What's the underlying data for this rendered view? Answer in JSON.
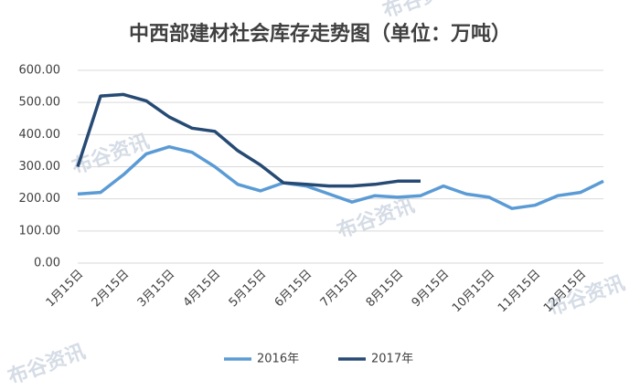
{
  "chart_data": {
    "type": "line",
    "title": "中西部建材社会库存走势图（单位：万吨）",
    "watermark": "布谷资讯",
    "categories": [
      "1月15日",
      null,
      "2月15日",
      null,
      "3月15日",
      null,
      "4月15日",
      null,
      "5月15日",
      null,
      "6月15日",
      null,
      "7月15日",
      null,
      "8月15日",
      null,
      "9月15日",
      null,
      "10月15日",
      null,
      "11月15日",
      null,
      "12月15日",
      null
    ],
    "series": [
      {
        "name": "2016年",
        "color": "#5b9bd5",
        "values": [
          215,
          220,
          275,
          340,
          362,
          345,
          300,
          245,
          225,
          250,
          240,
          215,
          190,
          210,
          205,
          210,
          240,
          215,
          205,
          170,
          180,
          210,
          220,
          255
        ]
      },
      {
        "name": "2017年",
        "color": "#264a73",
        "values": [
          300,
          520,
          525,
          505,
          455,
          420,
          410,
          350,
          305,
          250,
          245,
          240,
          240,
          245,
          255,
          255,
          null,
          null,
          null,
          null,
          null,
          null,
          null,
          null
        ]
      }
    ],
    "ylim": [
      0,
      600
    ],
    "yticks": [
      {
        "value": 0,
        "label": "0.00"
      },
      {
        "value": 100,
        "label": "100.00"
      },
      {
        "value": 200,
        "label": "200.00"
      },
      {
        "value": 300,
        "label": "300.00"
      },
      {
        "value": 400,
        "label": "400.00"
      },
      {
        "value": 500,
        "label": "500.00"
      },
      {
        "value": 600,
        "label": "600.00"
      }
    ],
    "grid": true,
    "legend": "bottom"
  }
}
